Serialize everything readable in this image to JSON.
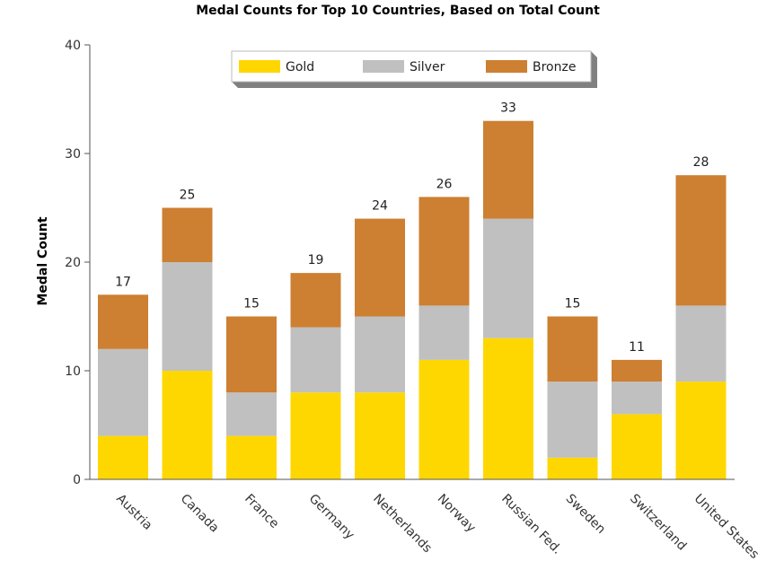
{
  "chart_data": {
    "type": "bar",
    "stacked": true,
    "title": "Medal Counts for Top 10 Countries, Based on Total Count",
    "xlabel": "",
    "ylabel": "Medal Count",
    "ylim": [
      0,
      40
    ],
    "yticks": [
      0,
      10,
      20,
      30,
      40
    ],
    "grid": false,
    "legend_position": "top-center",
    "categories": [
      "Austria",
      "Canada",
      "France",
      "Germany",
      "Netherlands",
      "Norway",
      "Russian Fed.",
      "Sweden",
      "Switzerland",
      "United States"
    ],
    "series": [
      {
        "name": "Gold",
        "color": "#FFD700",
        "values": [
          4,
          10,
          4,
          8,
          8,
          11,
          13,
          2,
          6,
          9
        ]
      },
      {
        "name": "Silver",
        "color": "#C0C0C0",
        "values": [
          8,
          10,
          4,
          6,
          7,
          5,
          11,
          7,
          3,
          7
        ]
      },
      {
        "name": "Bronze",
        "color": "#CD7F32",
        "values": [
          5,
          5,
          7,
          5,
          9,
          10,
          9,
          6,
          2,
          12
        ]
      }
    ],
    "totals": [
      17,
      25,
      15,
      19,
      24,
      26,
      33,
      15,
      11,
      28
    ]
  }
}
